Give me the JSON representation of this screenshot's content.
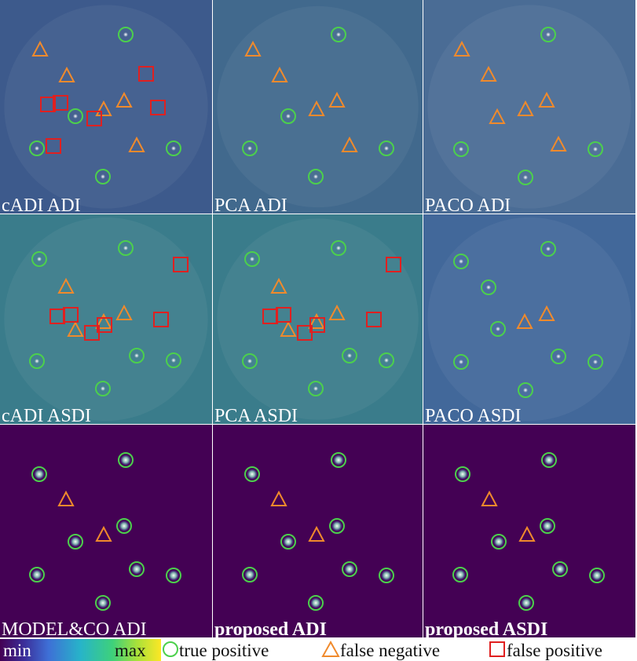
{
  "panels": [
    {
      "label": "cADI ADI"
    },
    {
      "label": "PCA ADI"
    },
    {
      "label": "PACO ADI"
    },
    {
      "label": "cADI ASDI"
    },
    {
      "label": "PCA ASDI"
    },
    {
      "label": "PACO ASDI"
    },
    {
      "label": "MODEL&CO ADI"
    },
    {
      "label": "proposed ADI"
    },
    {
      "label": "proposed ASDI"
    }
  ],
  "legend": {
    "colorbar": {
      "min": "min",
      "max": "max"
    },
    "items": [
      {
        "label": "true positive"
      },
      {
        "label": "false negative"
      },
      {
        "label": "false positive"
      }
    ]
  }
}
